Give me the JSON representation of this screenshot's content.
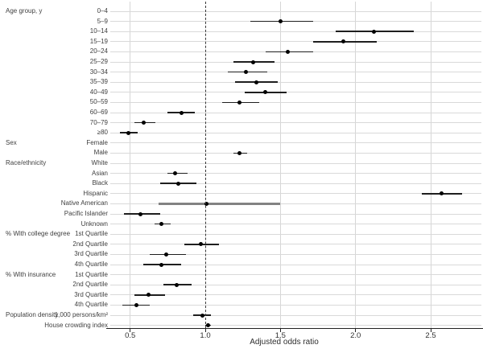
{
  "chart_data": {
    "type": "scatter",
    "subtype": "forest-plot",
    "title": "",
    "xlabel": "Adjusted odds ratio",
    "ylabel": "",
    "x_ticks": [
      0.5,
      1.0,
      1.5,
      2.0,
      2.5
    ],
    "x_tick_labels": [
      "0.5",
      "1.0",
      "1.5",
      "2.0",
      "2.5"
    ],
    "xlim": [
      0.37,
      2.84
    ],
    "reference_line": 1.0,
    "legend": "none",
    "grid": "vertical-light",
    "colors": {
      "marker": "#000000",
      "ci": "#1f1f1f",
      "ci_muted": "#828282",
      "row_line": "#d9d9d9",
      "grid": "#d6d6d6",
      "ref_line": "#3a3a3a",
      "axis": "#222222",
      "text": "#3f3f3f"
    },
    "groups": [
      {
        "label": "Age group, y",
        "rows": [
          {
            "label": "0–4",
            "reference": true,
            "or": null,
            "lo": null,
            "hi": null
          },
          {
            "label": "5–9",
            "or": 1.5,
            "lo": 1.3,
            "hi": 1.72
          },
          {
            "label": "10–14",
            "or": 2.12,
            "lo": 1.87,
            "hi": 2.39
          },
          {
            "label": "15–19",
            "or": 1.92,
            "lo": 1.72,
            "hi": 2.14
          },
          {
            "label": "20–24",
            "or": 1.55,
            "lo": 1.4,
            "hi": 1.72
          },
          {
            "label": "25–29",
            "or": 1.32,
            "lo": 1.19,
            "hi": 1.46
          },
          {
            "label": "30–34",
            "or": 1.27,
            "lo": 1.15,
            "hi": 1.41
          },
          {
            "label": "35–39",
            "or": 1.34,
            "lo": 1.2,
            "hi": 1.48
          },
          {
            "label": "40–49",
            "or": 1.4,
            "lo": 1.26,
            "hi": 1.54
          },
          {
            "label": "50–59",
            "or": 1.23,
            "lo": 1.11,
            "hi": 1.36
          },
          {
            "label": "60–69",
            "or": 0.84,
            "lo": 0.75,
            "hi": 0.93
          },
          {
            "label": "70–79",
            "or": 0.59,
            "lo": 0.53,
            "hi": 0.67
          },
          {
            "label": "≥80",
            "or": 0.49,
            "lo": 0.43,
            "hi": 0.55
          }
        ]
      },
      {
        "label": "Sex",
        "rows": [
          {
            "label": "Female",
            "reference": true,
            "or": null,
            "lo": null,
            "hi": null
          },
          {
            "label": "Male",
            "or": 1.23,
            "lo": 1.19,
            "hi": 1.28
          }
        ]
      },
      {
        "label": "Race/ethnicity",
        "rows": [
          {
            "label": "White",
            "reference": true,
            "or": null,
            "lo": null,
            "hi": null
          },
          {
            "label": "Asian",
            "or": 0.8,
            "lo": 0.75,
            "hi": 0.88
          },
          {
            "label": "Black",
            "or": 0.82,
            "lo": 0.7,
            "hi": 0.94
          },
          {
            "label": "Hispanic",
            "or": 2.57,
            "lo": 2.44,
            "hi": 2.71
          },
          {
            "label": "Native American",
            "or": 1.01,
            "lo": 0.69,
            "hi": 1.5,
            "ci_style": "muted"
          },
          {
            "label": "Pacific Islander",
            "or": 0.57,
            "lo": 0.46,
            "hi": 0.7
          },
          {
            "label": "Unknown",
            "or": 0.71,
            "lo": 0.66,
            "hi": 0.77
          }
        ]
      },
      {
        "label": "% With college degree",
        "rows": [
          {
            "label": "1st Quartile",
            "reference": true,
            "or": null,
            "lo": null,
            "hi": null
          },
          {
            "label": "2nd Quartile",
            "or": 0.97,
            "lo": 0.86,
            "hi": 1.09
          },
          {
            "label": "3rd Quartile",
            "or": 0.74,
            "lo": 0.63,
            "hi": 0.87
          },
          {
            "label": "4th Quartile",
            "or": 0.71,
            "lo": 0.59,
            "hi": 0.84
          }
        ]
      },
      {
        "label": "% With insurance",
        "rows": [
          {
            "label": "1st Quartile",
            "reference": true,
            "or": null,
            "lo": null,
            "hi": null
          },
          {
            "label": "2nd Quartile",
            "or": 0.81,
            "lo": 0.72,
            "hi": 0.91
          },
          {
            "label": "3rd Quartile",
            "or": 0.62,
            "lo": 0.53,
            "hi": 0.73
          },
          {
            "label": "4th Quartile",
            "or": 0.54,
            "lo": 0.45,
            "hi": 0.63
          }
        ]
      },
      {
        "label": "Population density",
        "rows": [
          {
            "label": "1,000 persons/km²",
            "or": 0.98,
            "lo": 0.92,
            "hi": 1.04
          }
        ]
      },
      {
        "label": "",
        "rows": [
          {
            "label": "House crowding index",
            "or": 1.02,
            "lo": 1.0,
            "hi": 1.04
          }
        ]
      }
    ]
  }
}
